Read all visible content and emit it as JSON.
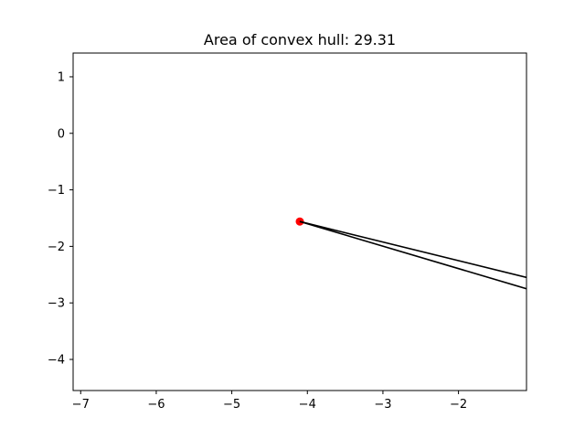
{
  "chart_data": {
    "type": "scatter",
    "title": "Area of convex hull: 29.31",
    "xlabel": "",
    "ylabel": "",
    "xlim": [
      -7.1,
      -1.1
    ],
    "ylim": [
      -4.55,
      1.42
    ],
    "xticks": [
      -7,
      -6,
      -5,
      -4,
      -3,
      -2
    ],
    "yticks": [
      1,
      0,
      -1,
      -2,
      -3,
      -4
    ],
    "xtick_labels": [
      "−7",
      "−6",
      "−5",
      "−4",
      "−3",
      "−2"
    ],
    "ytick_labels": [
      "1",
      "0",
      "−1",
      "−2",
      "−3",
      "−4"
    ],
    "grid": false,
    "points": [
      {
        "x": -4.1,
        "y": -1.56
      }
    ],
    "point_color": "#ff0000",
    "lines": [
      {
        "x": [
          -4.1,
          -1.1
        ],
        "y": [
          -1.56,
          -2.55
        ]
      },
      {
        "x": [
          -4.1,
          -1.1
        ],
        "y": [
          -1.56,
          -2.75
        ]
      }
    ],
    "line_color": "#000000"
  }
}
